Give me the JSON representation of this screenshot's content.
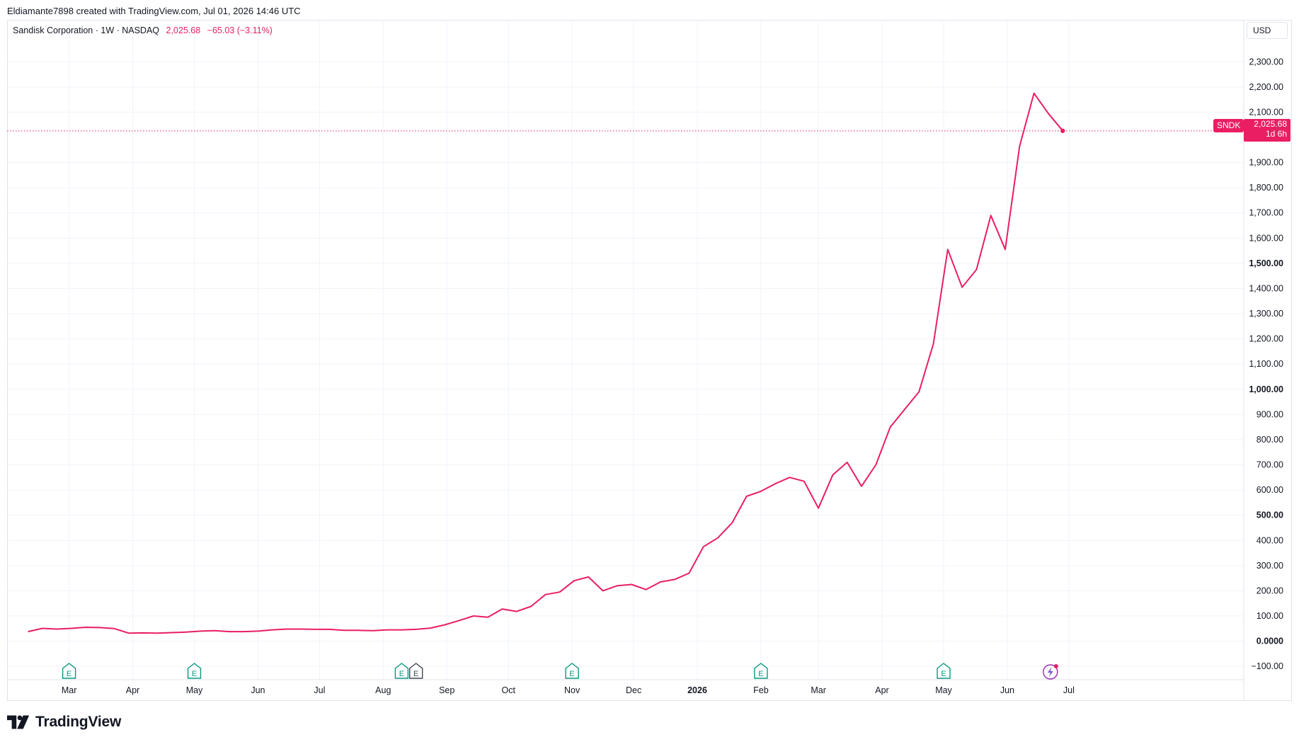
{
  "credit": "Eldiamante7898 created with TradingView.com, Jul 01, 2026 14:46 UTC",
  "legend": {
    "symbol_line": "Sandisk Corporation · 1W · NASDAQ",
    "price": "2,025.68",
    "change": "−65.03 (−3.11%)"
  },
  "currency": "USD",
  "price_tag": {
    "symbol": "SNDK",
    "last": "2,025.68",
    "countdown": "1d 6h"
  },
  "brand": "TradingView",
  "colors": {
    "line": "#e91e63",
    "grid": "#f0f3fa",
    "earnings": "#089981",
    "text": "#131722"
  },
  "chart_data": {
    "type": "line",
    "title": "",
    "ylabel": "",
    "ylim": [
      -100,
      2400
    ],
    "y_ticks": [
      {
        "value": 2300,
        "label": "2,300.00",
        "bold": false
      },
      {
        "value": 2200,
        "label": "2,200.00",
        "bold": false
      },
      {
        "value": 2100,
        "label": "2,100.00",
        "bold": false
      },
      {
        "value": 1900,
        "label": "1,900.00",
        "bold": false
      },
      {
        "value": 1800,
        "label": "1,800.00",
        "bold": false
      },
      {
        "value": 1700,
        "label": "1,700.00",
        "bold": false
      },
      {
        "value": 1600,
        "label": "1,600.00",
        "bold": false
      },
      {
        "value": 1500,
        "label": "1,500.00",
        "bold": true
      },
      {
        "value": 1400,
        "label": "1,400.00",
        "bold": false
      },
      {
        "value": 1300,
        "label": "1,300.00",
        "bold": false
      },
      {
        "value": 1200,
        "label": "1,200.00",
        "bold": false
      },
      {
        "value": 1100,
        "label": "1,100.00",
        "bold": false
      },
      {
        "value": 1000,
        "label": "1,000.00",
        "bold": true
      },
      {
        "value": 900,
        "label": "900.00",
        "bold": false
      },
      {
        "value": 800,
        "label": "800.00",
        "bold": false
      },
      {
        "value": 700,
        "label": "700.00",
        "bold": false
      },
      {
        "value": 600,
        "label": "600.00",
        "bold": false
      },
      {
        "value": 500,
        "label": "500.00",
        "bold": true
      },
      {
        "value": 400,
        "label": "400.00",
        "bold": false
      },
      {
        "value": 300,
        "label": "300.00",
        "bold": false
      },
      {
        "value": 200,
        "label": "200.00",
        "bold": false
      },
      {
        "value": 100,
        "label": "100.00",
        "bold": false
      },
      {
        "value": 0,
        "label": "0.0000",
        "bold": true
      },
      {
        "value": -100,
        "label": "−100.00",
        "bold": false
      }
    ],
    "x_ticks": [
      {
        "date": "2025-03-01",
        "label": "Mar",
        "bold": false
      },
      {
        "date": "2025-04-01",
        "label": "Apr",
        "bold": false
      },
      {
        "date": "2025-05-01",
        "label": "May",
        "bold": false
      },
      {
        "date": "2025-06-01",
        "label": "Jun",
        "bold": false
      },
      {
        "date": "2025-07-01",
        "label": "Jul",
        "bold": false
      },
      {
        "date": "2025-08-01",
        "label": "Aug",
        "bold": false
      },
      {
        "date": "2025-09-01",
        "label": "Sep",
        "bold": false
      },
      {
        "date": "2025-10-01",
        "label": "Oct",
        "bold": false
      },
      {
        "date": "2025-11-01",
        "label": "Nov",
        "bold": false
      },
      {
        "date": "2025-12-01",
        "label": "Dec",
        "bold": false
      },
      {
        "date": "2026-01-01",
        "label": "2026",
        "bold": true
      },
      {
        "date": "2026-02-01",
        "label": "Feb",
        "bold": false
      },
      {
        "date": "2026-03-01",
        "label": "Mar",
        "bold": false
      },
      {
        "date": "2026-04-01",
        "label": "Apr",
        "bold": false
      },
      {
        "date": "2026-05-01",
        "label": "May",
        "bold": false
      },
      {
        "date": "2026-06-01",
        "label": "Jun",
        "bold": false
      },
      {
        "date": "2026-07-01",
        "label": "Jul",
        "bold": false
      }
    ],
    "earnings_markers": [
      {
        "date": "2025-03-01",
        "label": "E",
        "filled": false
      },
      {
        "date": "2025-05-01",
        "label": "E",
        "filled": false
      },
      {
        "date": "2025-08-10",
        "label": "E",
        "filled": false
      },
      {
        "date": "2025-08-17",
        "label": "E",
        "filled": true
      },
      {
        "date": "2025-11-01",
        "label": "E",
        "filled": false
      },
      {
        "date": "2026-02-01",
        "label": "E",
        "filled": false
      },
      {
        "date": "2026-05-01",
        "label": "E",
        "filled": false
      }
    ],
    "series": [
      {
        "x": [
          "2025-02-09",
          "2025-02-16",
          "2025-02-23",
          "2025-03-02",
          "2025-03-09",
          "2025-03-16",
          "2025-03-23",
          "2025-03-30",
          "2025-04-06",
          "2025-04-13",
          "2025-04-20",
          "2025-04-27",
          "2025-05-04",
          "2025-05-11",
          "2025-05-18",
          "2025-05-25",
          "2025-06-01",
          "2025-06-08",
          "2025-06-15",
          "2025-06-22",
          "2025-06-29",
          "2025-07-06",
          "2025-07-13",
          "2025-07-20",
          "2025-07-27",
          "2025-08-03",
          "2025-08-10",
          "2025-08-17",
          "2025-08-24",
          "2025-08-31",
          "2025-09-07",
          "2025-09-14",
          "2025-09-21",
          "2025-09-28",
          "2025-10-05",
          "2025-10-12",
          "2025-10-19",
          "2025-10-26",
          "2025-11-02",
          "2025-11-09",
          "2025-11-16",
          "2025-11-23",
          "2025-11-30",
          "2025-12-07",
          "2025-12-14",
          "2025-12-21",
          "2025-12-28",
          "2026-01-04",
          "2026-01-11",
          "2026-01-18",
          "2026-01-25",
          "2026-02-01",
          "2026-02-08",
          "2026-02-15",
          "2026-02-22",
          "2026-03-01",
          "2026-03-08",
          "2026-03-15",
          "2026-03-22",
          "2026-03-29",
          "2026-04-05",
          "2026-04-12",
          "2026-04-19",
          "2026-04-26",
          "2026-05-03",
          "2026-05-10",
          "2026-05-17",
          "2026-05-24",
          "2026-05-31",
          "2026-06-07",
          "2026-06-14",
          "2026-06-21",
          "2026-06-28"
        ],
        "values": [
          38,
          51,
          48,
          51,
          55,
          54,
          50,
          32,
          33,
          32,
          34,
          36,
          40,
          42,
          38,
          38,
          40,
          45,
          48,
          48,
          47,
          47,
          43,
          43,
          42,
          45,
          45,
          47,
          52,
          65,
          82,
          100,
          95,
          128,
          118,
          138,
          185,
          195,
          240,
          255,
          200,
          220,
          225,
          205,
          235,
          245,
          270,
          375,
          410,
          470,
          575,
          595,
          625,
          650,
          635,
          528,
          660,
          710,
          615,
          700,
          850,
          920,
          990,
          1180,
          1555,
          1405,
          1475,
          1690,
          1555,
          1965,
          2175,
          2095,
          2026
        ]
      }
    ],
    "last_value": 2025.68
  }
}
